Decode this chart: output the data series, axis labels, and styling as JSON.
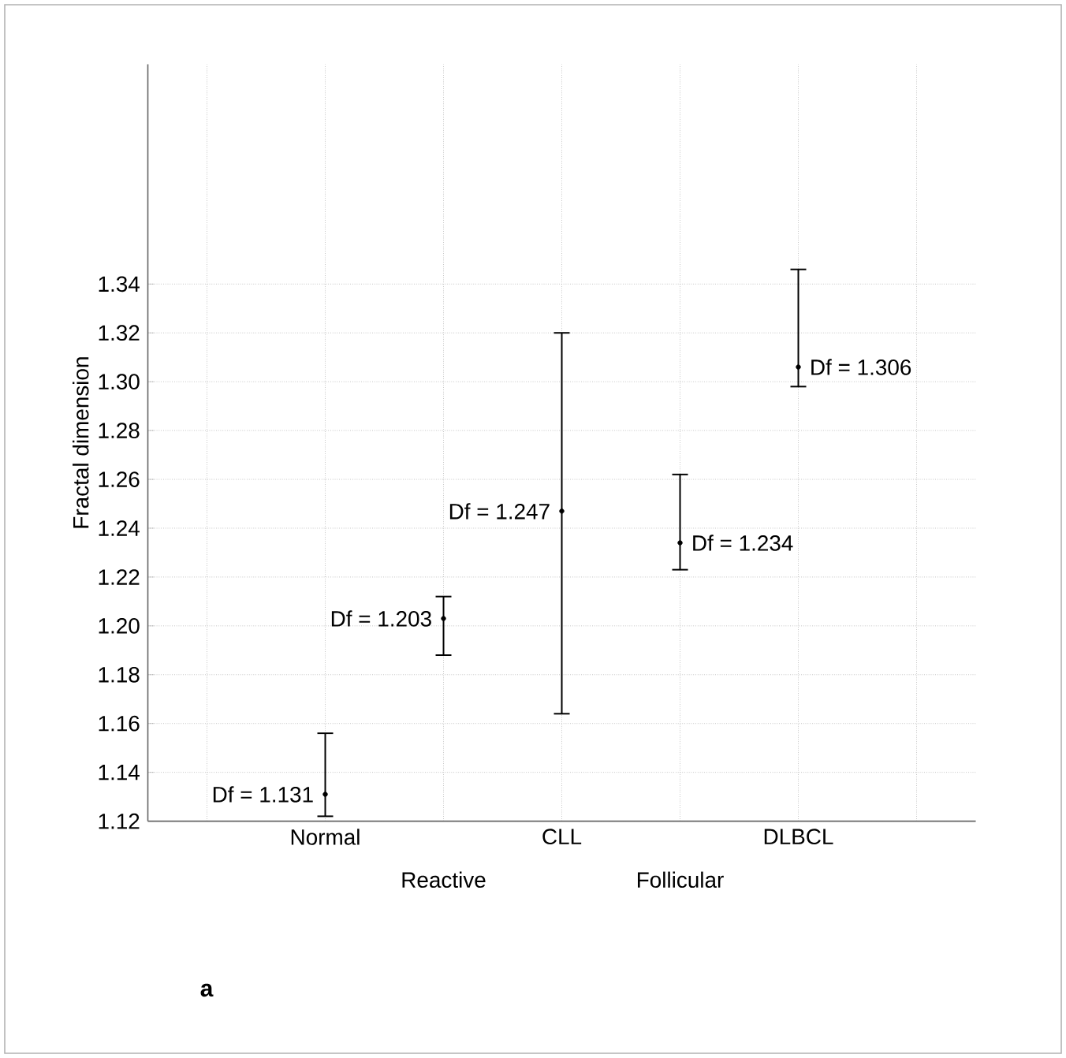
{
  "chart_data": {
    "type": "scatter",
    "ylabel": "Fractal dimension",
    "categories": [
      null,
      "Normal",
      "Reactive",
      "CLL",
      "Follicular",
      "DLBCL",
      null
    ],
    "values": [
      null,
      1.131,
      1.203,
      1.247,
      1.234,
      1.306,
      null
    ],
    "errors": [
      null,
      [
        1.122,
        1.156
      ],
      [
        1.188,
        1.212
      ],
      [
        1.164,
        1.32
      ],
      [
        1.223,
        1.262
      ],
      [
        1.298,
        1.346
      ],
      null
    ],
    "value_labels": [
      null,
      "Df = 1.131",
      "Df = 1.203",
      "Df = 1.247",
      "Df = 1.234",
      "Df = 1.306",
      null
    ],
    "color": "#000000",
    "marker": "circle",
    "grid": true,
    "ylim": [
      1.12,
      1.43
    ],
    "yticks": [
      {
        "value": 1.12,
        "label": "1.12"
      },
      {
        "value": 1.14,
        "label": "1.14"
      },
      {
        "value": 1.16,
        "label": "1.16"
      },
      {
        "value": 1.18,
        "label": "1.18"
      },
      {
        "value": 1.2,
        "label": "1.20"
      },
      {
        "value": 1.22,
        "label": "1.22"
      },
      {
        "value": 1.24,
        "label": "1.24"
      },
      {
        "value": 1.26,
        "label": "1.26"
      },
      {
        "value": 1.28,
        "label": "1.28"
      },
      {
        "value": 1.3,
        "label": "1.30"
      },
      {
        "value": 1.32,
        "label": "1.32"
      },
      {
        "value": 1.34,
        "label": "1.34"
      }
    ],
    "annotations": [
      "**a**"
    ]
  }
}
